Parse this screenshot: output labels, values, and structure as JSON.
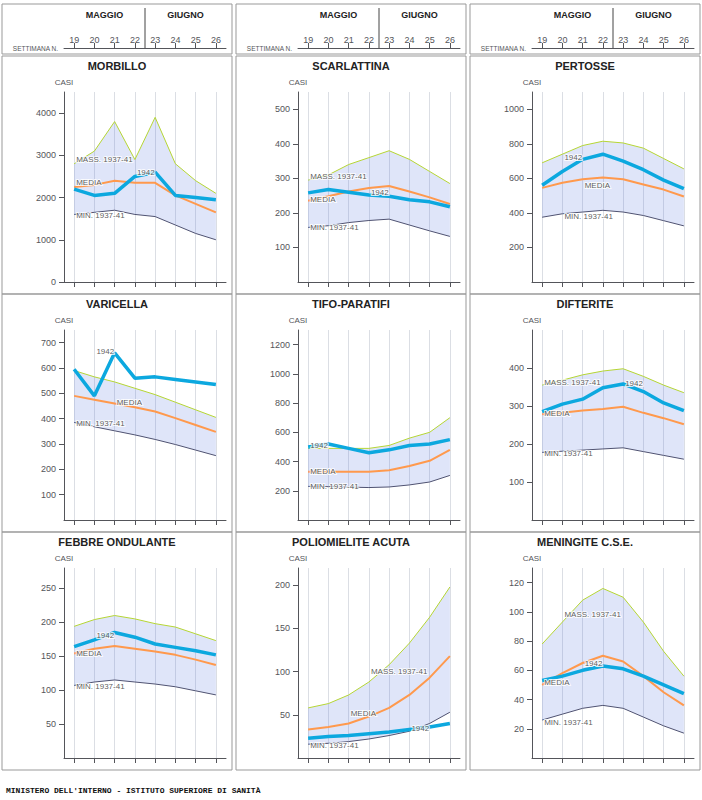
{
  "footer": "MINISTERO DELL'INTERNO - ISTITUTO SUPERIORE DI SANITÀ",
  "chart_data": [
    {
      "type": "line",
      "title": "MORBILLO",
      "ylabel": "CASI",
      "xlabel": "SETTIMANA N.",
      "x_groups": [
        {
          "text": "MAGGIO",
          "x": [
            19,
            22
          ]
        },
        {
          "text": "GIUGNO",
          "x": [
            23,
            26
          ]
        }
      ],
      "x": [
        19,
        20,
        21,
        22,
        23,
        24,
        25,
        26
      ],
      "xlim": [
        18.5,
        26.5
      ],
      "xticks": [
        19,
        20,
        21,
        22,
        23,
        24,
        25,
        26
      ],
      "ylim": [
        0,
        4500
      ],
      "yticks": [
        0,
        1000,
        2000,
        3000,
        4000
      ],
      "grid": "x",
      "series": [
        {
          "type": "range_max",
          "line_style": "thin",
          "values": [
            2800,
            3100,
            3800,
            2900,
            3900,
            2800,
            2400,
            2100
          ]
        },
        {
          "type": "range_min",
          "line_style": "thin",
          "values": [
            1600,
            1650,
            1700,
            1600,
            1550,
            1350,
            1150,
            1000
          ]
        },
        {
          "type": "line",
          "line_style": "medium",
          "values": [
            2250,
            2300,
            2400,
            2350,
            2350,
            2050,
            1850,
            1650
          ]
        },
        {
          "type": "line",
          "line_style": "thick",
          "values": [
            2200,
            2050,
            2100,
            2500,
            2600,
            2050,
            2000,
            1950
          ]
        }
      ],
      "annotations": [
        {
          "text": "MASS. 1937-41",
          "x": 19,
          "y": 2900
        },
        {
          "text": "MEDIA",
          "x": 19,
          "y": 2350
        },
        {
          "text": "MIN. 1937-41",
          "x": 19,
          "y": 1580
        },
        {
          "text": "1942",
          "x": 22,
          "y": 2600
        }
      ]
    },
    {
      "type": "line",
      "title": "SCARLATTINA",
      "ylabel": "CASI",
      "xlabel": "SETTIMANA N.",
      "x_groups": [
        {
          "text": "MAGGIO",
          "x": [
            19,
            22
          ]
        },
        {
          "text": "GIUGNO",
          "x": [
            23,
            26
          ]
        }
      ],
      "x": [
        19,
        20,
        21,
        22,
        23,
        24,
        25,
        26
      ],
      "xlim": [
        18.5,
        26.5
      ],
      "xticks": [
        19,
        20,
        21,
        22,
        23,
        24,
        25,
        26
      ],
      "ylim": [
        0,
        550
      ],
      "yticks": [
        100,
        200,
        300,
        400,
        500
      ],
      "grid": "x",
      "series": [
        {
          "type": "range_max",
          "line_style": "thin",
          "values": [
            295,
            310,
            340,
            360,
            380,
            355,
            320,
            285
          ]
        },
        {
          "type": "range_min",
          "line_style": "thin",
          "values": [
            158,
            163,
            172,
            178,
            182,
            165,
            148,
            132
          ]
        },
        {
          "type": "line",
          "line_style": "medium",
          "values": [
            235,
            248,
            262,
            272,
            278,
            262,
            245,
            226
          ]
        },
        {
          "type": "line",
          "line_style": "thick",
          "values": [
            258,
            268,
            260,
            252,
            248,
            238,
            232,
            218
          ]
        }
      ],
      "annotations": [
        {
          "text": "MASS. 1937-41",
          "x": 19,
          "y": 305
        },
        {
          "text": "MEDIA",
          "x": 19,
          "y": 240
        },
        {
          "text": "MIN. 1937-41",
          "x": 19,
          "y": 158
        },
        {
          "text": "1942",
          "x": 22,
          "y": 258
        }
      ]
    },
    {
      "type": "line",
      "title": "PERTOSSE",
      "ylabel": "CASI",
      "xlabel": "SETTIMANA N.",
      "x_groups": [
        {
          "text": "MAGGIO",
          "x": [
            19,
            22
          ]
        },
        {
          "text": "GIUGNO",
          "x": [
            23,
            26
          ]
        }
      ],
      "x": [
        19,
        20,
        21,
        22,
        23,
        24,
        25,
        26
      ],
      "xlim": [
        18.5,
        26.5
      ],
      "xticks": [
        19,
        20,
        21,
        22,
        23,
        24,
        25,
        26
      ],
      "ylim": [
        0,
        1100
      ],
      "yticks": [
        200,
        400,
        600,
        800,
        1000
      ],
      "grid": "x",
      "series": [
        {
          "type": "range_max",
          "line_style": "thin",
          "values": [
            690,
            740,
            790,
            815,
            805,
            775,
            715,
            655
          ]
        },
        {
          "type": "range_min",
          "line_style": "thin",
          "values": [
            375,
            395,
            405,
            415,
            405,
            385,
            355,
            325
          ]
        },
        {
          "type": "line",
          "line_style": "medium",
          "values": [
            545,
            575,
            595,
            605,
            595,
            565,
            535,
            495
          ]
        },
        {
          "type": "line",
          "line_style": "thick",
          "values": [
            560,
            640,
            710,
            740,
            700,
            650,
            590,
            540
          ]
        }
      ],
      "annotations": [
        {
          "text": "MEDIA",
          "x": 21,
          "y": 560
        },
        {
          "text": "MIN. 1937-41",
          "x": 20,
          "y": 380
        },
        {
          "text": "1942",
          "x": 20,
          "y": 720
        }
      ]
    },
    {
      "type": "line",
      "title": "VARICELLA",
      "ylabel": "CASI",
      "tick_labels": "y",
      "x": [
        19,
        20,
        21,
        22,
        23,
        24,
        25,
        26
      ],
      "xlim": [
        18.5,
        26.5
      ],
      "xticks": [
        19,
        20,
        21,
        22,
        23,
        24,
        25,
        26
      ],
      "ylim": [
        0,
        750
      ],
      "yticks": [
        100,
        200,
        300,
        400,
        500,
        600,
        700
      ],
      "grid": "x",
      "series": [
        {
          "type": "range_max",
          "line_style": "thin",
          "values": [
            590,
            565,
            545,
            520,
            495,
            465,
            435,
            405
          ]
        },
        {
          "type": "range_min",
          "line_style": "thin",
          "values": [
            385,
            368,
            352,
            336,
            318,
            298,
            276,
            254
          ]
        },
        {
          "type": "line",
          "line_style": "medium",
          "values": [
            490,
            475,
            460,
            445,
            428,
            402,
            375,
            348
          ]
        },
        {
          "type": "line",
          "line_style": "thick",
          "values": [
            595,
            490,
            660,
            560,
            565,
            555,
            545,
            535
          ]
        }
      ],
      "annotations": [
        {
          "text": "MEDIA",
          "x": 21,
          "y": 462
        },
        {
          "text": "MIN. 1937-41",
          "x": 19,
          "y": 382
        },
        {
          "text": "1942",
          "x": 20,
          "y": 665
        }
      ]
    },
    {
      "type": "line",
      "title": "TIFO-PARATIFI",
      "ylabel": "CASI",
      "tick_labels": "y",
      "x": [
        19,
        20,
        21,
        22,
        23,
        24,
        25,
        26
      ],
      "xlim": [
        18.5,
        26.5
      ],
      "xticks": [
        19,
        20,
        21,
        22,
        23,
        24,
        25,
        26
      ],
      "ylim": [
        0,
        1300
      ],
      "yticks": [
        200,
        400,
        600,
        800,
        1000,
        1200
      ],
      "grid": "x",
      "series": [
        {
          "type": "range_max",
          "line_style": "thin",
          "values": [
            490,
            490,
            490,
            490,
            510,
            560,
            600,
            700
          ]
        },
        {
          "type": "range_min",
          "line_style": "thin",
          "values": [
            230,
            228,
            225,
            222,
            226,
            240,
            260,
            305
          ]
        },
        {
          "type": "line",
          "line_style": "medium",
          "values": [
            330,
            330,
            330,
            330,
            340,
            370,
            405,
            480
          ]
        },
        {
          "type": "line",
          "line_style": "thick",
          "values": [
            500,
            520,
            490,
            460,
            480,
            510,
            520,
            550
          ]
        }
      ],
      "annotations": [
        {
          "text": "MEDIA",
          "x": 19,
          "y": 330
        },
        {
          "text": "MIN. 1937-41",
          "x": 19,
          "y": 228
        },
        {
          "text": "1942",
          "x": 19,
          "y": 510
        }
      ]
    },
    {
      "type": "line",
      "title": "DIFTERITE",
      "ylabel": "CASI",
      "tick_labels": "y",
      "x": [
        19,
        20,
        21,
        22,
        23,
        24,
        25,
        26
      ],
      "xlim": [
        18.5,
        26.5
      ],
      "xticks": [
        19,
        20,
        21,
        22,
        23,
        24,
        25,
        26
      ],
      "ylim": [
        0,
        500
      ],
      "yticks": [
        100,
        200,
        300,
        400
      ],
      "grid": "x",
      "series": [
        {
          "type": "range_max",
          "line_style": "thin",
          "values": [
            355,
            368,
            382,
            392,
            398,
            378,
            355,
            335
          ]
        },
        {
          "type": "range_min",
          "line_style": "thin",
          "values": [
            178,
            181,
            184,
            187,
            190,
            180,
            170,
            160
          ]
        },
        {
          "type": "line",
          "line_style": "medium",
          "values": [
            278,
            282,
            288,
            292,
            298,
            282,
            268,
            252
          ]
        },
        {
          "type": "line",
          "line_style": "thick",
          "values": [
            285,
            305,
            318,
            348,
            358,
            338,
            308,
            288
          ]
        }
      ],
      "annotations": [
        {
          "text": "MASS. 1937-41",
          "x": 19,
          "y": 362
        },
        {
          "text": "MEDIA",
          "x": 19,
          "y": 280
        },
        {
          "text": "MIN. 1937-41",
          "x": 19,
          "y": 176
        },
        {
          "text": "1942",
          "x": 23,
          "y": 360
        }
      ]
    },
    {
      "type": "line",
      "title": "FEBBRE ONDULANTE",
      "ylabel": "CASI",
      "tick_labels": "y",
      "x": [
        19,
        20,
        21,
        22,
        23,
        24,
        25,
        26
      ],
      "xlim": [
        18.5,
        26.5
      ],
      "xticks": [
        19,
        20,
        21,
        22,
        23,
        24,
        25,
        26
      ],
      "ylim": [
        0,
        280
      ],
      "yticks": [
        50,
        100,
        150,
        200,
        250
      ],
      "grid": "x",
      "series": [
        {
          "type": "range_max",
          "line_style": "thin",
          "values": [
            194,
            204,
            210,
            205,
            198,
            193,
            183,
            173
          ]
        },
        {
          "type": "range_min",
          "line_style": "thin",
          "values": [
            107,
            112,
            115,
            112,
            109,
            105,
            99,
            93
          ]
        },
        {
          "type": "line",
          "line_style": "medium",
          "values": [
            154,
            161,
            165,
            161,
            157,
            152,
            145,
            137
          ]
        },
        {
          "type": "line",
          "line_style": "thick",
          "values": [
            164,
            174,
            185,
            178,
            168,
            163,
            158,
            152
          ]
        }
      ],
      "annotations": [
        {
          "text": "MEDIA",
          "x": 19,
          "y": 154
        },
        {
          "text": "MIN. 1937-41",
          "x": 19,
          "y": 105
        },
        {
          "text": "1942",
          "x": 20,
          "y": 180
        }
      ]
    },
    {
      "type": "line",
      "title": "POLIOMIELITE ACUTA",
      "ylabel": "CASI",
      "tick_labels": "y",
      "x": [
        19,
        20,
        21,
        22,
        23,
        24,
        25,
        26
      ],
      "xlim": [
        18.5,
        26.5
      ],
      "xticks": [
        19,
        20,
        21,
        22,
        23,
        24,
        25,
        26
      ],
      "ylim": [
        0,
        220
      ],
      "yticks": [
        50,
        100,
        150,
        200
      ],
      "grid": "x",
      "series": [
        {
          "type": "range_max",
          "line_style": "thin",
          "values": [
            58,
            63,
            73,
            88,
            108,
            133,
            163,
            198
          ]
        },
        {
          "type": "range_min",
          "line_style": "thin",
          "values": [
            16,
            17,
            19,
            22,
            26,
            31,
            40,
            53
          ]
        },
        {
          "type": "line",
          "line_style": "medium",
          "values": [
            33,
            36,
            40,
            48,
            58,
            73,
            93,
            118
          ]
        },
        {
          "type": "line",
          "line_style": "thick",
          "values": [
            23,
            25,
            26,
            28,
            30,
            33,
            36,
            40
          ]
        }
      ],
      "annotations": [
        {
          "text": "MASS. 1937-41",
          "x": 22,
          "y": 100
        },
        {
          "text": "MEDIA",
          "x": 21,
          "y": 52
        },
        {
          "text": "MIN. 1937-41",
          "x": 19,
          "y": 14
        },
        {
          "text": "1942",
          "x": 24,
          "y": 34
        }
      ]
    },
    {
      "type": "line",
      "title": "MENINGITE C.S.E.",
      "ylabel": "CASI",
      "tick_labels": "y",
      "x": [
        19,
        20,
        21,
        22,
        23,
        24,
        25,
        26
      ],
      "xlim": [
        18.5,
        26.5
      ],
      "xticks": [
        19,
        20,
        21,
        22,
        23,
        24,
        25,
        26
      ],
      "ylim": [
        0,
        130
      ],
      "yticks": [
        20,
        40,
        60,
        80,
        100,
        120
      ],
      "grid": "x",
      "series": [
        {
          "type": "range_max",
          "line_style": "thin",
          "values": [
            78,
            93,
            108,
            116,
            110,
            93,
            73,
            56
          ]
        },
        {
          "type": "range_min",
          "line_style": "thin",
          "values": [
            26,
            30,
            34,
            36,
            34,
            28,
            22,
            17
          ]
        },
        {
          "type": "line",
          "line_style": "medium",
          "values": [
            50,
            58,
            65,
            70,
            66,
            56,
            45,
            36
          ]
        },
        {
          "type": "line",
          "line_style": "thick",
          "values": [
            53,
            56,
            60,
            63,
            61,
            56,
            50,
            44
          ]
        }
      ],
      "annotations": [
        {
          "text": "MASS. 1937-41",
          "x": 20,
          "y": 98
        },
        {
          "text": "MEDIA",
          "x": 19,
          "y": 52
        },
        {
          "text": "MIN. 1937-41",
          "x": 19,
          "y": 24
        },
        {
          "text": "1942",
          "x": 21,
          "y": 65
        }
      ]
    }
  ]
}
